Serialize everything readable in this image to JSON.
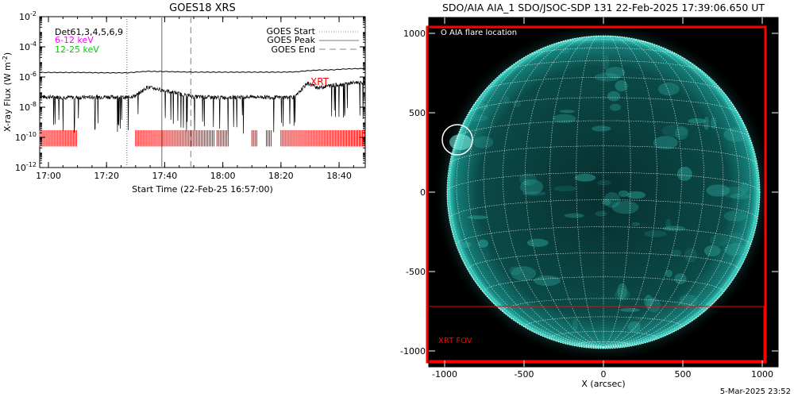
{
  "left_panel": {
    "title": "GOES18 XRS",
    "ylabel_prefix": "X-ray Flux (W m",
    "ylabel_sup": "-2",
    "ylabel_suffix": ")",
    "xlabel": "Start Time (22-Feb-25 16:57:00)",
    "ytick_base": "10",
    "ytick_exponents": [
      "-2",
      "-4",
      "-6",
      "-8",
      "-10",
      "-12"
    ],
    "xtick_labels": [
      "17:00",
      "17:20",
      "17:40",
      "18:00",
      "18:20",
      "18:40"
    ],
    "dets_label": "Det61,3,4,5,6,9",
    "band1_label": "6-12 keV",
    "band2_label": "12-25 keV",
    "legend_start": "GOES Start",
    "legend_peak": "GOES Peak",
    "legend_end": "GOES End",
    "xrt_label": "XRT",
    "colors": {
      "band1": "#ff00ff",
      "band2": "#00cc00",
      "xrt": "#ff0000"
    }
  },
  "right_panel": {
    "title": "SDO/AIA AIA_1 SDO/JSOC-SDP 131 22-Feb-2025 17:39:06.650 UT",
    "flare_label": "AIA flare location",
    "flare_marker": "O",
    "xrt_fov_label": "XRT FOV",
    "xlabel": "X (arcsec)",
    "xtick_labels": [
      "-1000",
      "-500",
      "0",
      "500",
      "1000"
    ],
    "ytick_labels": [
      "1000",
      "500",
      "0",
      "-500",
      "-1000"
    ],
    "colors": {
      "fov": "#ff0000",
      "disk": "#0f6a66",
      "limb": "#3fe0cf"
    }
  },
  "footer_date": "5-Mar-2025 23:52",
  "chart_data": [
    {
      "type": "line",
      "title": "GOES18 XRS",
      "xlabel": "Start Time (22-Feb-25 16:57:00)",
      "ylabel": "X-ray Flux (W m-2)",
      "yscale": "log",
      "ylim": [
        1e-12,
        0.01
      ],
      "xlim": [
        "16:57",
        "18:49"
      ],
      "grid": false,
      "legend": "top-right",
      "x": [
        "16:57",
        "17:10",
        "17:20",
        "17:27",
        "17:30",
        "17:34",
        "17:40",
        "17:50",
        "18:00",
        "18:10",
        "18:20",
        "18:25",
        "18:29",
        "18:33",
        "18:38",
        "18:42",
        "18:46",
        "18:49"
      ],
      "series": [
        {
          "values": [
            2e-06,
            2e-06,
            1.9e-06,
            1.9e-06,
            2.1e-06,
            2.4e-06,
            2.3e-06,
            2.1e-06,
            2.1e-06,
            2.1e-06,
            2.1e-06,
            2.2e-06,
            2.6e-06,
            2.9e-06,
            3e-06,
            3.4e-06,
            3.6e-06,
            3.6e-06
          ]
        },
        {
          "values": [
            5e-08,
            4.5e-08,
            5e-08,
            4.5e-08,
            6e-08,
            2.2e-07,
            1.3e-07,
            5e-08,
            4.5e-08,
            5e-08,
            4.5e-08,
            5e-08,
            4e-07,
            2e-07,
            3e-07,
            3.5e-07,
            4.5e-07,
            4.2e-07
          ]
        }
      ],
      "vertical_markers": {
        "GOES Start": "17:27",
        "GOES Peak": "17:39",
        "GOES End": "17:49"
      },
      "xrt_coverage": [
        [
          "16:57",
          "17:10"
        ],
        [
          "17:30",
          "17:57"
        ],
        [
          "17:58",
          "18:02"
        ],
        [
          "18:10",
          "18:12"
        ],
        [
          "18:15",
          "18:17"
        ],
        [
          "18:20",
          "18:49"
        ]
      ],
      "annotations": [
        "Det61,3,4,5,6,9",
        "6-12 keV",
        "12-25 keV",
        "XRT"
      ]
    },
    {
      "type": "image",
      "title": "SDO/AIA AIA_1 SDO/JSOC-SDP 131 22-Feb-2025 17:39:06.650 UT",
      "xlabel": "X (arcsec)",
      "xlim": [
        -1100,
        1100
      ],
      "ylim": [
        -1100,
        1100
      ],
      "solar_radius_arcsec": 985,
      "grid_lines_deg": 10,
      "flare_location": {
        "x": -920,
        "y": 330
      },
      "xrt_fov": {
        "x1": -1110,
        "x2": 1020,
        "y1": -1070,
        "y2": 1040
      },
      "legend": "top-left"
    }
  ]
}
